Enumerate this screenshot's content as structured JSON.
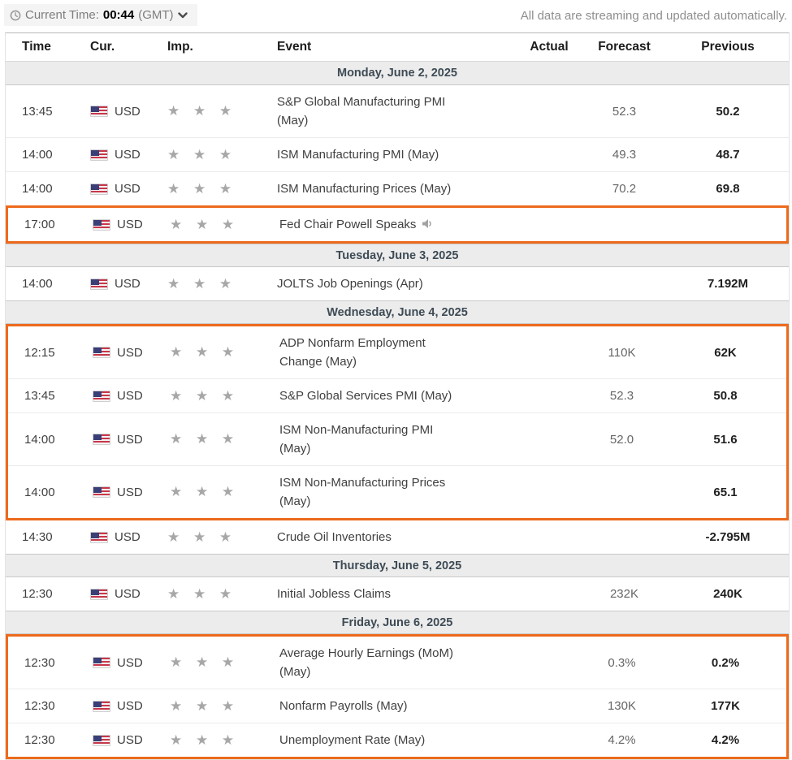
{
  "toolbar": {
    "current_time_label": "Current Time:",
    "current_time_value": "00:44",
    "timezone": "(GMT)",
    "streaming_note": "All data are streaming and updated automatically."
  },
  "table": {
    "columns": {
      "time": "Time",
      "cur": "Cur.",
      "imp": "Imp.",
      "event": "Event",
      "actual": "Actual",
      "forecast": "Forecast",
      "previous": "Previous"
    },
    "star_glyph": "★"
  },
  "colors": {
    "highlight_border": "#ed6a1c",
    "star": "#a7a7a7",
    "day_header_bg": "#ececec",
    "day_header_text": "#3e4b55"
  },
  "calendar": {
    "sections": [
      {
        "day_label": "Monday, June 2, 2025",
        "rows": [
          {
            "time": "13:45",
            "currency": "USD",
            "importance": 3,
            "event": "S&P Global Manufacturing PMI\n(May)",
            "actual": "",
            "forecast": "52.3",
            "previous": "50.2",
            "highlight": false,
            "speech": false
          },
          {
            "time": "14:00",
            "currency": "USD",
            "importance": 3,
            "event": "ISM Manufacturing PMI (May)",
            "actual": "",
            "forecast": "49.3",
            "previous": "48.7",
            "highlight": false,
            "speech": false
          },
          {
            "time": "14:00",
            "currency": "USD",
            "importance": 3,
            "event": "ISM Manufacturing Prices (May)",
            "actual": "",
            "forecast": "70.2",
            "previous": "69.8",
            "highlight": false,
            "speech": false
          },
          {
            "time": "17:00",
            "currency": "USD",
            "importance": 3,
            "event": "Fed Chair Powell Speaks",
            "actual": "",
            "forecast": "",
            "previous": "",
            "highlight": true,
            "speech": true
          }
        ]
      },
      {
        "day_label": "Tuesday, June 3, 2025",
        "rows": [
          {
            "time": "14:00",
            "currency": "USD",
            "importance": 3,
            "event": "JOLTS Job Openings (Apr)",
            "actual": "",
            "forecast": "",
            "previous": "7.192M",
            "highlight": false,
            "speech": false
          }
        ]
      },
      {
        "day_label": "Wednesday, June 4, 2025",
        "rows": [
          {
            "time": "12:15",
            "currency": "USD",
            "importance": 3,
            "event": "ADP Nonfarm Employment\nChange (May)",
            "actual": "",
            "forecast": "110K",
            "previous": "62K",
            "highlight": true,
            "speech": false
          },
          {
            "time": "13:45",
            "currency": "USD",
            "importance": 3,
            "event": "S&P Global Services PMI (May)",
            "actual": "",
            "forecast": "52.3",
            "previous": "50.8",
            "highlight": true,
            "speech": false
          },
          {
            "time": "14:00",
            "currency": "USD",
            "importance": 3,
            "event": "ISM Non-Manufacturing PMI\n(May)",
            "actual": "",
            "forecast": "52.0",
            "previous": "51.6",
            "highlight": true,
            "speech": false
          },
          {
            "time": "14:00",
            "currency": "USD",
            "importance": 3,
            "event": "ISM Non-Manufacturing Prices\n(May)",
            "actual": "",
            "forecast": "",
            "previous": "65.1",
            "highlight": true,
            "speech": false
          },
          {
            "time": "14:30",
            "currency": "USD",
            "importance": 3,
            "event": "Crude Oil Inventories",
            "actual": "",
            "forecast": "",
            "previous": "-2.795M",
            "highlight": false,
            "speech": false
          }
        ]
      },
      {
        "day_label": "Thursday, June 5, 2025",
        "rows": [
          {
            "time": "12:30",
            "currency": "USD",
            "importance": 3,
            "event": "Initial Jobless Claims",
            "actual": "",
            "forecast": "232K",
            "previous": "240K",
            "highlight": false,
            "speech": false
          }
        ]
      },
      {
        "day_label": "Friday, June 6, 2025",
        "rows": [
          {
            "time": "12:30",
            "currency": "USD",
            "importance": 3,
            "event": "Average Hourly Earnings (MoM)\n(May)",
            "actual": "",
            "forecast": "0.3%",
            "previous": "0.2%",
            "highlight": true,
            "speech": false
          },
          {
            "time": "12:30",
            "currency": "USD",
            "importance": 3,
            "event": "Nonfarm Payrolls (May)",
            "actual": "",
            "forecast": "130K",
            "previous": "177K",
            "highlight": true,
            "speech": false
          },
          {
            "time": "12:30",
            "currency": "USD",
            "importance": 3,
            "event": "Unemployment Rate (May)",
            "actual": "",
            "forecast": "4.2%",
            "previous": "4.2%",
            "highlight": true,
            "speech": false
          }
        ]
      }
    ]
  }
}
